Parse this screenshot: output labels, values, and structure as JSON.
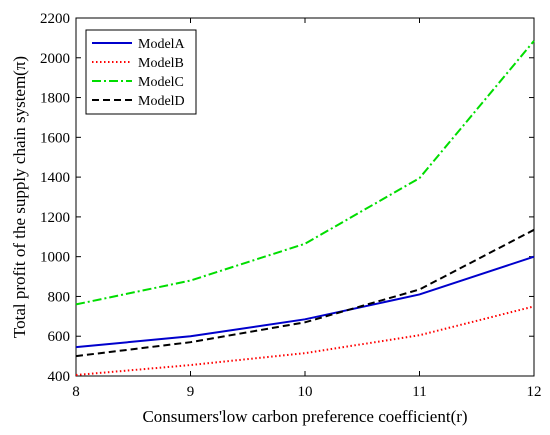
{
  "chart_data": {
    "type": "line",
    "xlabel": "Consumers'low carbon preference coefficient(r)",
    "ylabel": "Total profit of the supply chain system(π)",
    "x": [
      8,
      9,
      10,
      11,
      12
    ],
    "xlim": [
      8,
      12
    ],
    "ylim": [
      400,
      2200
    ],
    "xticks": [
      8,
      9,
      10,
      11,
      12
    ],
    "yticks": [
      400,
      600,
      800,
      1000,
      1200,
      1400,
      1600,
      1800,
      2000,
      2200
    ],
    "grid": false,
    "legend_position": "top-left",
    "series": [
      {
        "name": "ModelA",
        "values": [
          545,
          600,
          685,
          810,
          1000
        ],
        "color": "#0000cc",
        "style": "solid"
      },
      {
        "name": "ModelB",
        "values": [
          405,
          455,
          515,
          605,
          750
        ],
        "color": "#ff0000",
        "style": "dotted"
      },
      {
        "name": "ModelC",
        "values": [
          760,
          880,
          1065,
          1395,
          2085
        ],
        "color": "#00dd00",
        "style": "dashdot"
      },
      {
        "name": "ModelD",
        "values": [
          500,
          570,
          670,
          835,
          1135
        ],
        "color": "#000000",
        "style": "dashed"
      }
    ]
  }
}
